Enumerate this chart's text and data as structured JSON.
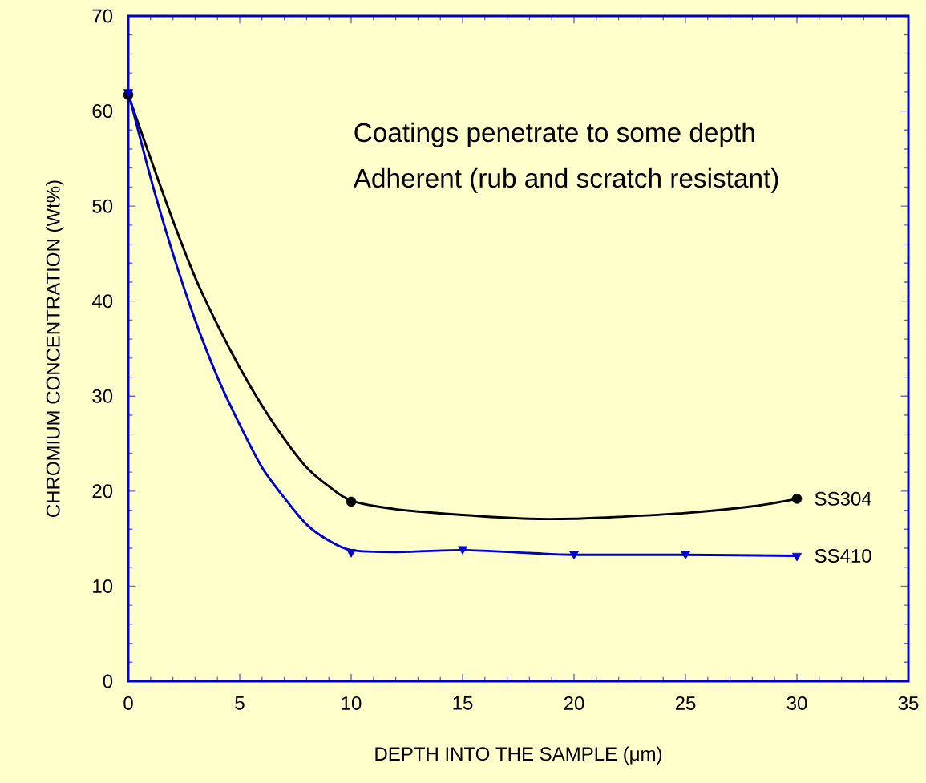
{
  "chart_data": {
    "type": "line",
    "xlabel": "DEPTH INTO THE SAMPLE (μm)",
    "ylabel": "CHROMIUM CONCENTRATION (Wt%)",
    "annotations": [
      "Coatings penetrate to some depth",
      "Adherent (rub and scratch resistant)"
    ],
    "xlim": [
      0,
      35
    ],
    "xticks": [
      0,
      5,
      10,
      15,
      20,
      25,
      30,
      35
    ],
    "ylim": [
      0,
      70
    ],
    "yticks": [
      0,
      10,
      20,
      30,
      40,
      50,
      60,
      70
    ],
    "line_style": "solid",
    "series": [
      {
        "name": "SS304",
        "color": "#000000",
        "marker": "none",
        "x": [
          0,
          1,
          2,
          3,
          4,
          5,
          6,
          7,
          8,
          9,
          10,
          12,
          15,
          18,
          20,
          22,
          25,
          28,
          30
        ],
        "values": [
          61.7,
          55,
          48.5,
          42.5,
          37.5,
          33,
          29,
          25.5,
          22.5,
          20.5,
          19,
          18.1,
          17.5,
          17.1,
          17.1,
          17.3,
          17.7,
          18.4,
          19.2
        ]
      },
      {
        "name": "SS410",
        "color": "#0000cc",
        "marker": "none",
        "x": [
          0,
          1,
          2,
          3,
          4,
          5,
          6,
          7,
          8,
          9,
          10,
          12,
          15,
          18,
          20,
          25,
          30
        ],
        "values": [
          62,
          53,
          45,
          38,
          32,
          27,
          22.5,
          19.3,
          16.5,
          14.8,
          13.8,
          13.6,
          13.8,
          13.5,
          13.3,
          13.3,
          13.2
        ]
      },
      {
        "type": "scatter",
        "color": "#000000",
        "marker": "circle",
        "x": [
          0,
          10,
          30
        ],
        "values": [
          61.7,
          18.9,
          19.2
        ]
      },
      {
        "type": "scatter",
        "color": "#0000cc",
        "marker": "triangle",
        "x": [
          0,
          10,
          15,
          20,
          25,
          30
        ],
        "values": [
          62,
          13.6,
          13.9,
          13.4,
          13.4,
          13.2
        ]
      }
    ]
  }
}
